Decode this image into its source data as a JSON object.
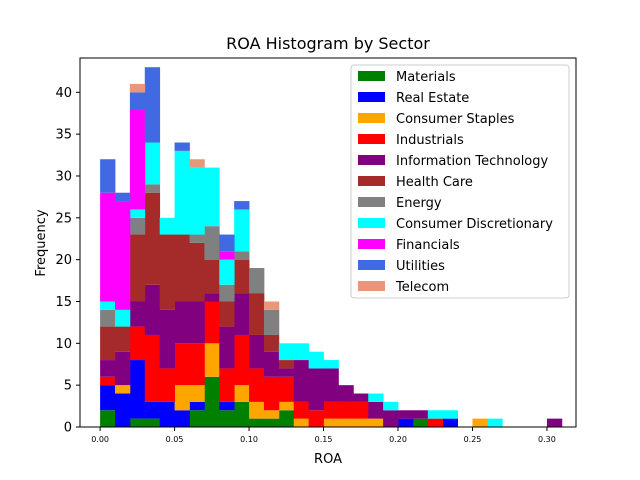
{
  "chart_data": {
    "type": "bar",
    "stacked": true,
    "title": "ROA Histogram by Sector",
    "xlabel": "ROA",
    "ylabel": "Frequency",
    "xlim": [
      -0.0135,
      0.3195
    ],
    "ylim": [
      0,
      44.1
    ],
    "x_ticks": [
      0.0,
      0.05,
      0.1,
      0.15,
      0.2,
      0.25,
      0.3
    ],
    "x_tick_labels": [
      "0.00",
      "0.05",
      "0.10",
      "0.15",
      "0.20",
      "0.25",
      "0.30"
    ],
    "y_ticks": [
      0,
      5,
      10,
      15,
      20,
      25,
      30,
      35,
      40
    ],
    "y_tick_labels": [
      "0",
      "5",
      "10",
      "15",
      "20",
      "25",
      "30",
      "35",
      "40"
    ],
    "grid": false,
    "legend_position": "top-right",
    "bin_start": 0.0,
    "bin_width": 0.01,
    "bin_count": 31,
    "series": [
      {
        "name": "Materials",
        "color": "#008000",
        "values": [
          2,
          0,
          1,
          1,
          0,
          0,
          2,
          6,
          2,
          3,
          1,
          1,
          2,
          0,
          0,
          0,
          0,
          0,
          0,
          0,
          0,
          1,
          0,
          0,
          0,
          0,
          0,
          0,
          0,
          0,
          0
        ]
      },
      {
        "name": "Real Estate",
        "color": "#0000ff",
        "values": [
          3,
          4,
          7,
          2,
          3,
          2,
          1,
          0,
          1,
          0,
          0,
          0,
          0,
          0,
          0,
          0,
          0,
          0,
          0,
          0,
          1,
          0,
          0,
          1,
          0,
          0,
          0,
          0,
          0,
          0,
          0
        ]
      },
      {
        "name": "Consumer Staples",
        "color": "#ffa500",
        "values": [
          0,
          1,
          0,
          0,
          0,
          3,
          2,
          4,
          0,
          2,
          2,
          1,
          1,
          1,
          0,
          1,
          1,
          1,
          1,
          0,
          0,
          0,
          0,
          0,
          0,
          1,
          0,
          0,
          0,
          0,
          0
        ]
      },
      {
        "name": "Industrials",
        "color": "#ff0000",
        "values": [
          1,
          0,
          4,
          8,
          4,
          5,
          5,
          5,
          4,
          6,
          4,
          4,
          3,
          2,
          2,
          2,
          2,
          2,
          0,
          0,
          0,
          0,
          1,
          0,
          0,
          0,
          0,
          0,
          0,
          0,
          0
        ]
      },
      {
        "name": "Information Technology",
        "color": "#800080",
        "values": [
          2,
          4,
          3,
          6,
          7,
          5,
          5,
          1,
          5,
          5,
          4,
          3,
          1,
          5,
          5,
          4,
          2,
          1,
          2,
          2,
          1,
          1,
          0,
          0,
          0,
          0,
          0,
          0,
          0,
          0,
          1
        ]
      },
      {
        "name": "Health Care",
        "color": "#a52a2a",
        "values": [
          4,
          3,
          8,
          11,
          9,
          8,
          7,
          4,
          3,
          4,
          5,
          2,
          1,
          0,
          0,
          0,
          0,
          0,
          0,
          0,
          0,
          0,
          0,
          0,
          0,
          0,
          0,
          0,
          0,
          0,
          0
        ]
      },
      {
        "name": "Energy",
        "color": "#808080",
        "values": [
          2,
          0,
          2,
          1,
          0,
          0,
          1,
          4,
          2,
          1,
          3,
          3,
          0,
          0,
          0,
          0,
          0,
          0,
          0,
          0,
          0,
          0,
          0,
          0,
          0,
          0,
          0,
          0,
          0,
          0,
          0
        ]
      },
      {
        "name": "Consumer Discretionary",
        "color": "#00ffff",
        "values": [
          1,
          2,
          1,
          5,
          2,
          10,
          8,
          7,
          3,
          5,
          0,
          0,
          2,
          2,
          2,
          1,
          0,
          0,
          1,
          1,
          0,
          0,
          1,
          1,
          0,
          0,
          1,
          0,
          0,
          0,
          0
        ]
      },
      {
        "name": "Financials",
        "color": "#ff00ff",
        "values": [
          13,
          13,
          12,
          0,
          0,
          0,
          0,
          0,
          1,
          0,
          0,
          0,
          0,
          0,
          0,
          0,
          0,
          0,
          0,
          0,
          0,
          0,
          0,
          0,
          0,
          0,
          0,
          0,
          0,
          0,
          0
        ]
      },
      {
        "name": "Utilities",
        "color": "#4169e1",
        "values": [
          4,
          1,
          2,
          9,
          0,
          1,
          0,
          0,
          2,
          1,
          0,
          0,
          0,
          0,
          0,
          0,
          0,
          0,
          0,
          0,
          0,
          0,
          0,
          0,
          0,
          0,
          0,
          0,
          0,
          0,
          0
        ]
      },
      {
        "name": "Telecom",
        "color": "#e9967a",
        "values": [
          0,
          0,
          1,
          0,
          0,
          0,
          1,
          0,
          0,
          0,
          0,
          1,
          0,
          0,
          0,
          0,
          0,
          0,
          0,
          0,
          0,
          0,
          0,
          0,
          0,
          0,
          0,
          0,
          0,
          0,
          0
        ]
      }
    ]
  }
}
